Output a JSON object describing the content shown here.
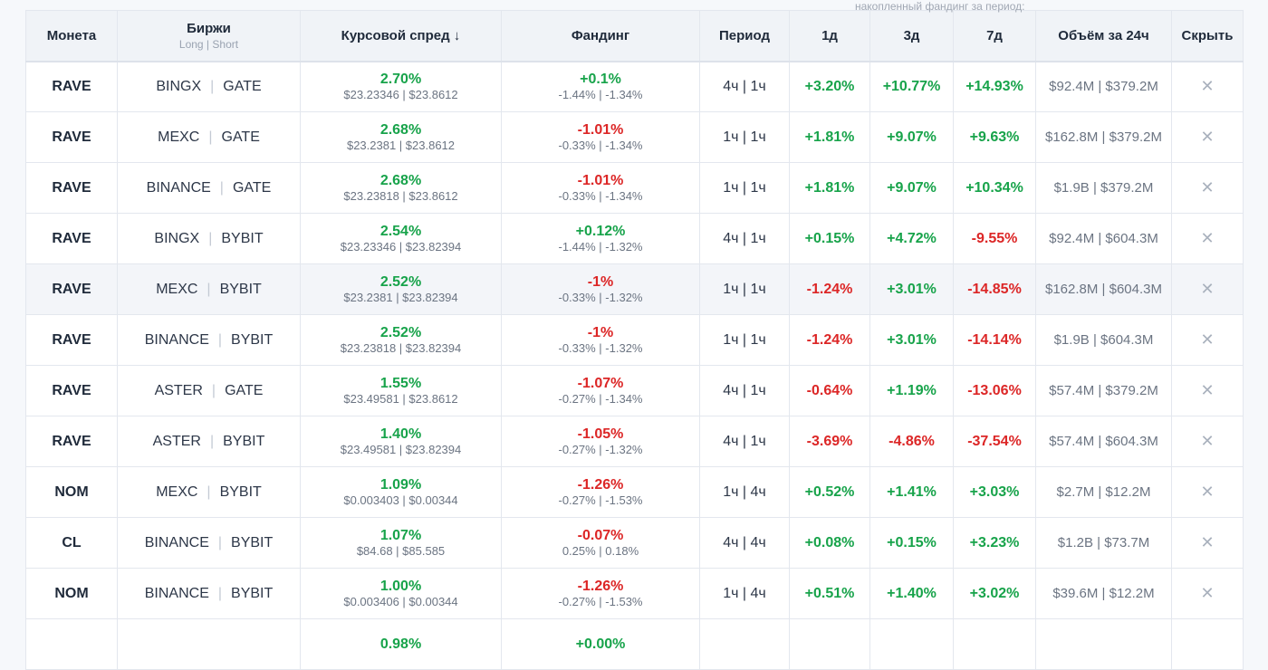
{
  "caption": "накопленный фандинг за период:",
  "headers": {
    "coin": "Монета",
    "exchanges": "Биржи",
    "exchanges_sub": "Long | Short",
    "spread": "Курсовой спред ↓",
    "funding": "Фандинг",
    "period": "Период",
    "d1": "1д",
    "d3": "3д",
    "d7": "7д",
    "volume": "Объём за 24ч",
    "hide": "Скрыть"
  },
  "hide_glyph": "✕",
  "exchange_sep": "|",
  "colors": {
    "positive": "#17a34a",
    "negative": "#dc2626"
  },
  "rows": [
    {
      "coin": "RAVE",
      "long": "BINGX",
      "short": "GATE",
      "spread": "2.70%",
      "spread_prices": "$23.23346 | $23.8612",
      "funding": "+0.1%",
      "funding_rates": "-1.44% | -1.34%",
      "period": "4ч | 1ч",
      "d1": "+3.20%",
      "d3": "+10.77%",
      "d7": "+14.93%",
      "volume": "$92.4M | $379.2M"
    },
    {
      "coin": "RAVE",
      "long": "MEXC",
      "short": "GATE",
      "spread": "2.68%",
      "spread_prices": "$23.2381 | $23.8612",
      "funding": "-1.01%",
      "funding_rates": "-0.33% | -1.34%",
      "period": "1ч | 1ч",
      "d1": "+1.81%",
      "d3": "+9.07%",
      "d7": "+9.63%",
      "volume": "$162.8M | $379.2M"
    },
    {
      "coin": "RAVE",
      "long": "BINANCE",
      "short": "GATE",
      "spread": "2.68%",
      "spread_prices": "$23.23818 | $23.8612",
      "funding": "-1.01%",
      "funding_rates": "-0.33% | -1.34%",
      "period": "1ч | 1ч",
      "d1": "+1.81%",
      "d3": "+9.07%",
      "d7": "+10.34%",
      "volume": "$1.9B | $379.2M"
    },
    {
      "coin": "RAVE",
      "long": "BINGX",
      "short": "BYBIT",
      "spread": "2.54%",
      "spread_prices": "$23.23346 | $23.82394",
      "funding": "+0.12%",
      "funding_rates": "-1.44% | -1.32%",
      "period": "4ч | 1ч",
      "d1": "+0.15%",
      "d3": "+4.72%",
      "d7": "-9.55%",
      "volume": "$92.4M | $604.3M"
    },
    {
      "coin": "RAVE",
      "long": "MEXC",
      "short": "BYBIT",
      "spread": "2.52%",
      "spread_prices": "$23.2381 | $23.82394",
      "funding": "-1%",
      "funding_rates": "-0.33% | -1.32%",
      "period": "1ч | 1ч",
      "d1": "-1.24%",
      "d3": "+3.01%",
      "d7": "-14.85%",
      "volume": "$162.8M | $604.3M",
      "highlight": true
    },
    {
      "coin": "RAVE",
      "long": "BINANCE",
      "short": "BYBIT",
      "spread": "2.52%",
      "spread_prices": "$23.23818 | $23.82394",
      "funding": "-1%",
      "funding_rates": "-0.33% | -1.32%",
      "period": "1ч | 1ч",
      "d1": "-1.24%",
      "d3": "+3.01%",
      "d7": "-14.14%",
      "volume": "$1.9B | $604.3M"
    },
    {
      "coin": "RAVE",
      "long": "ASTER",
      "short": "GATE",
      "spread": "1.55%",
      "spread_prices": "$23.49581 | $23.8612",
      "funding": "-1.07%",
      "funding_rates": "-0.27% | -1.34%",
      "period": "4ч | 1ч",
      "d1": "-0.64%",
      "d3": "+1.19%",
      "d7": "-13.06%",
      "volume": "$57.4M | $379.2M"
    },
    {
      "coin": "RAVE",
      "long": "ASTER",
      "short": "BYBIT",
      "spread": "1.40%",
      "spread_prices": "$23.49581 | $23.82394",
      "funding": "-1.05%",
      "funding_rates": "-0.27% | -1.32%",
      "period": "4ч | 1ч",
      "d1": "-3.69%",
      "d3": "-4.86%",
      "d7": "-37.54%",
      "volume": "$57.4M | $604.3M"
    },
    {
      "coin": "NOM",
      "long": "MEXC",
      "short": "BYBIT",
      "spread": "1.09%",
      "spread_prices": "$0.003403 | $0.00344",
      "funding": "-1.26%",
      "funding_rates": "-0.27% | -1.53%",
      "period": "1ч | 4ч",
      "d1": "+0.52%",
      "d3": "+1.41%",
      "d7": "+3.03%",
      "volume": "$2.7M | $12.2M"
    },
    {
      "coin": "CL",
      "long": "BINANCE",
      "short": "BYBIT",
      "spread": "1.07%",
      "spread_prices": "$84.68 | $85.585",
      "funding": "-0.07%",
      "funding_rates": "0.25% | 0.18%",
      "period": "4ч | 4ч",
      "d1": "+0.08%",
      "d3": "+0.15%",
      "d7": "+3.23%",
      "volume": "$1.2B | $73.7M"
    },
    {
      "coin": "NOM",
      "long": "BINANCE",
      "short": "BYBIT",
      "spread": "1.00%",
      "spread_prices": "$0.003406 | $0.00344",
      "funding": "-1.26%",
      "funding_rates": "-0.27% | -1.53%",
      "period": "1ч | 4ч",
      "d1": "+0.51%",
      "d3": "+1.40%",
      "d7": "+3.02%",
      "volume": "$39.6M | $12.2M"
    },
    {
      "coin": "",
      "long": "",
      "short": "",
      "spread": "0.98%",
      "spread_prices": "",
      "funding": "+0.00%",
      "funding_rates": "",
      "period": "",
      "d1": "",
      "d3": "",
      "d7": "",
      "volume": ""
    }
  ]
}
